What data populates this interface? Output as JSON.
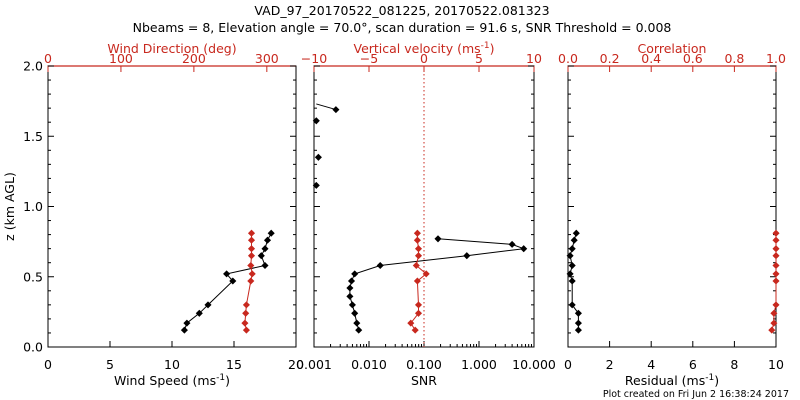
{
  "title_line1": "VAD_97_20170522_081225, 20170522.081323",
  "title_line2": "Nbeams = 8, Elevation angle = 70.0°, scan duration = 91.6 s, SNR Threshold = 0.008",
  "footer": "Plot created on Fri Jun  2 16:38:24 2017",
  "colors": {
    "black": "#000000",
    "red": "#c8281e"
  },
  "chart_data": [
    {
      "type": "line",
      "ylabel": "z (km AGL)",
      "ylim": [
        0,
        2.0
      ],
      "yticks": [
        "0.0",
        "0.5",
        "1.0",
        "1.5",
        "2.0"
      ],
      "bottom_axis": {
        "label": "Wind Speed (ms",
        "sup": "-1",
        "close": ")",
        "lim": [
          0,
          20
        ],
        "ticks": [
          "0",
          "5",
          "10",
          "15",
          "20"
        ]
      },
      "top_axis": {
        "label": "Wind Direction (deg)",
        "lim": [
          0,
          340
        ],
        "ticks": [
          "0",
          "100",
          "200",
          "300"
        ]
      },
      "series": [
        {
          "axis": "bottom",
          "color": "black",
          "points": [
            [
              11.0,
              0.12
            ],
            [
              11.2,
              0.17
            ],
            [
              12.2,
              0.24
            ],
            [
              12.9,
              0.3
            ],
            [
              14.9,
              0.47
            ],
            [
              14.4,
              0.52
            ],
            [
              17.5,
              0.58
            ],
            [
              17.2,
              0.65
            ],
            [
              17.5,
              0.7
            ],
            [
              17.7,
              0.76
            ],
            [
              18.0,
              0.81
            ]
          ]
        },
        {
          "axis": "top",
          "color": "red",
          "points": [
            [
              272,
              0.12
            ],
            [
              270,
              0.17
            ],
            [
              271,
              0.24
            ],
            [
              272,
              0.3
            ],
            [
              278,
              0.47
            ],
            [
              280,
              0.52
            ],
            [
              278,
              0.58
            ],
            [
              279,
              0.65
            ],
            [
              279,
              0.7
            ],
            [
              279,
              0.76
            ],
            [
              279,
              0.81
            ]
          ]
        }
      ]
    },
    {
      "type": "line",
      "bottom_axis": {
        "label": "SNR",
        "scale": "log",
        "lim": [
          0.001,
          10
        ],
        "ticks": [
          "0.001",
          "0.010",
          "0.100",
          "1.000",
          "10.000"
        ]
      },
      "top_axis": {
        "label": "Vertical velocity (ms",
        "sup": "-1",
        "close": ")",
        "lim": [
          -10,
          10
        ],
        "ticks": [
          "−10",
          "−5",
          "0",
          "5",
          "10"
        ]
      },
      "reference_line": {
        "axis": "top",
        "value": 0,
        "style": "dotted"
      },
      "series": [
        {
          "axis": "bottom",
          "color": "black",
          "points": [
            [
              0.0065,
              0.12
            ],
            [
              0.006,
              0.17
            ],
            [
              0.0055,
              0.24
            ],
            [
              0.005,
              0.3
            ],
            [
              0.0045,
              0.36
            ],
            [
              0.0045,
              0.42
            ],
            [
              0.0048,
              0.47
            ],
            [
              0.0055,
              0.52
            ],
            [
              0.016,
              0.58
            ],
            [
              0.6,
              0.65
            ],
            [
              6.5,
              0.7
            ],
            [
              4.0,
              0.73
            ],
            [
              0.18,
              0.77
            ]
          ]
        },
        {
          "axis": "top",
          "color": "red",
          "points": [
            [
              -0.8,
              0.12
            ],
            [
              -1.2,
              0.17
            ],
            [
              -0.5,
              0.24
            ],
            [
              -0.5,
              0.3
            ],
            [
              -0.6,
              0.47
            ],
            [
              0.2,
              0.52
            ],
            [
              -0.7,
              0.58
            ],
            [
              -0.5,
              0.65
            ],
            [
              -0.5,
              0.7
            ],
            [
              -0.6,
              0.76
            ],
            [
              -0.6,
              0.81
            ]
          ]
        },
        {
          "axis": "bottom",
          "color": "black",
          "markers_only": true,
          "points": [
            [
              0.0011,
              1.15
            ],
            [
              0.0012,
              1.35
            ],
            [
              0.0011,
              1.61
            ],
            [
              0.0025,
              1.69
            ]
          ]
        }
      ],
      "segment": {
        "axis": "bottom",
        "points": [
          [
            0.0025,
            1.69
          ],
          [
            0.0011,
            1.73
          ]
        ]
      }
    },
    {
      "type": "line",
      "bottom_axis": {
        "label": "Residual (ms",
        "sup": "-1",
        "close": ")",
        "lim": [
          0,
          10
        ],
        "ticks": [
          "0",
          "2",
          "4",
          "6",
          "8",
          "10"
        ]
      },
      "top_axis": {
        "label": "Correlation",
        "lim": [
          0,
          1.0
        ],
        "ticks": [
          "0.0",
          "0.2",
          "0.4",
          "0.6",
          "0.8",
          "1.0"
        ]
      },
      "series": [
        {
          "axis": "bottom",
          "color": "black",
          "points": [
            [
              0.5,
              0.12
            ],
            [
              0.5,
              0.17
            ],
            [
              0.5,
              0.24
            ],
            [
              0.2,
              0.3
            ],
            [
              0.2,
              0.47
            ],
            [
              0.1,
              0.52
            ],
            [
              0.2,
              0.58
            ],
            [
              0.1,
              0.65
            ],
            [
              0.2,
              0.7
            ],
            [
              0.3,
              0.76
            ],
            [
              0.4,
              0.81
            ]
          ]
        },
        {
          "axis": "top",
          "color": "red",
          "points": [
            [
              0.98,
              0.12
            ],
            [
              0.99,
              0.17
            ],
            [
              0.99,
              0.24
            ],
            [
              1.0,
              0.3
            ],
            [
              1.0,
              0.47
            ],
            [
              1.0,
              0.52
            ],
            [
              1.0,
              0.58
            ],
            [
              1.0,
              0.65
            ],
            [
              1.0,
              0.7
            ],
            [
              1.0,
              0.76
            ],
            [
              1.0,
              0.81
            ]
          ]
        }
      ]
    }
  ]
}
